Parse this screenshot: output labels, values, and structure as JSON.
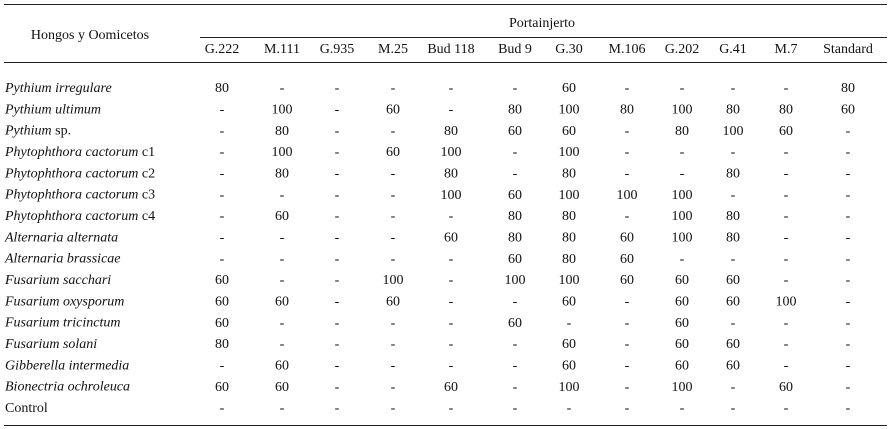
{
  "table": {
    "row_header": "Hongos y Oomicetos",
    "group_header": "Portainjerto",
    "columns": [
      "G.222",
      "M.111",
      "G.935",
      "M.25",
      "Bud 118",
      "Bud 9",
      "G.30",
      "M.106",
      "G.202",
      "G.41",
      "M.7",
      "Standard"
    ],
    "rows": [
      {
        "species": "Pythium irregulare",
        "values": [
          80,
          "-",
          "-",
          "-",
          "-",
          "-",
          60,
          "-",
          "-",
          "-",
          "-",
          80
        ]
      },
      {
        "species": "Pythium ultimum",
        "values": [
          "-",
          100,
          "-",
          60,
          "-",
          80,
          100,
          80,
          100,
          80,
          80,
          60
        ]
      },
      {
        "species": "Pythium",
        "suffix": "sp.",
        "values": [
          "-",
          80,
          "-",
          "-",
          80,
          60,
          60,
          "-",
          80,
          100,
          60,
          "-"
        ]
      },
      {
        "species": "Phytophthora cactorum",
        "suffix": "c1",
        "values": [
          "-",
          100,
          "-",
          60,
          100,
          "-",
          100,
          "-",
          "-",
          "-",
          "-",
          "-"
        ]
      },
      {
        "species": "Phytophthora cactorum",
        "suffix": "c2",
        "values": [
          "-",
          80,
          "-",
          "-",
          80,
          "-",
          80,
          "-",
          "-",
          80,
          "-",
          "-"
        ]
      },
      {
        "species": "Phytophthora cactorum",
        "suffix": "c3",
        "values": [
          "-",
          "-",
          "-",
          "-",
          100,
          60,
          100,
          100,
          100,
          "-",
          "-",
          "-"
        ]
      },
      {
        "species": "Phytophthora cactorum",
        "suffix": "c4",
        "values": [
          "-",
          60,
          "-",
          "-",
          "-",
          80,
          80,
          "-",
          100,
          80,
          "-",
          "-"
        ]
      },
      {
        "species": "Alternaria alternata",
        "values": [
          "-",
          "-",
          "-",
          "-",
          60,
          80,
          80,
          60,
          100,
          80,
          "-",
          "-"
        ]
      },
      {
        "species": "Alternaria brassicae",
        "values": [
          "-",
          "-",
          "-",
          "-",
          "-",
          60,
          80,
          60,
          "-",
          "-",
          "-",
          "-"
        ]
      },
      {
        "species": "Fusarium sacchari",
        "values": [
          60,
          "-",
          "-",
          100,
          "-",
          100,
          100,
          60,
          60,
          60,
          "-",
          "-"
        ]
      },
      {
        "species": "Fusarium oxysporum",
        "values": [
          60,
          60,
          "-",
          60,
          "-",
          "-",
          60,
          "-",
          60,
          60,
          100,
          "-"
        ]
      },
      {
        "species": "Fusarium tricinctum",
        "values": [
          60,
          "-",
          "-",
          "-",
          "-",
          60,
          "-",
          "-",
          60,
          "-",
          "-",
          "-"
        ]
      },
      {
        "species": "Fusarium solani",
        "values": [
          80,
          "-",
          "-",
          "-",
          "-",
          "-",
          60,
          "-",
          60,
          60,
          "-",
          "-"
        ]
      },
      {
        "species": "Gibberella intermedia",
        "values": [
          "-",
          60,
          "-",
          "-",
          "-",
          "-",
          60,
          "-",
          60,
          60,
          "-",
          "-"
        ]
      },
      {
        "species": "Bionectria ochroleuca",
        "values": [
          60,
          60,
          "-",
          "-",
          60,
          "-",
          100,
          "-",
          100,
          "-",
          60,
          "-"
        ]
      },
      {
        "suffix": "Control",
        "values": [
          "-",
          "-",
          "-",
          "-",
          "-",
          "-",
          "-",
          "-",
          "-",
          "-",
          "-",
          "-"
        ]
      }
    ]
  }
}
